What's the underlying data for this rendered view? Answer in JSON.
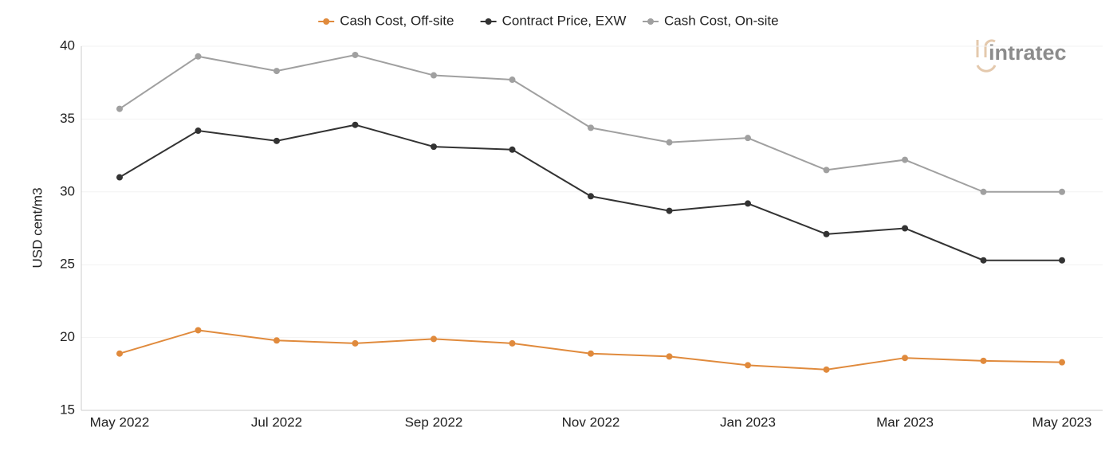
{
  "chart_data": {
    "type": "line",
    "logo": "intratec",
    "y_label": "USD cent/m3",
    "categories": [
      "May 2022",
      null,
      "Jul 2022",
      null,
      "Sep 2022",
      null,
      "Nov 2022",
      null,
      "Jan 2023",
      null,
      "Mar 2023",
      null,
      "May 2023"
    ],
    "series": [
      {
        "name": "Cash Cost, Off-site",
        "color": "#e08a3c",
        "values": [
          18.9,
          20.5,
          19.8,
          19.6,
          19.9,
          19.6,
          18.9,
          18.7,
          18.1,
          17.8,
          18.6,
          18.4,
          18.3
        ]
      },
      {
        "name": "Contract Price, EXW",
        "color": "#333333",
        "values": [
          31.0,
          34.2,
          33.5,
          34.6,
          33.1,
          32.9,
          29.7,
          28.7,
          29.2,
          27.1,
          27.5,
          25.3,
          25.3
        ]
      },
      {
        "name": "Cash Cost, On-site",
        "color": "#a0a0a0",
        "values": [
          35.7,
          39.3,
          38.3,
          39.4,
          38.0,
          37.7,
          34.4,
          33.4,
          33.7,
          31.5,
          32.2,
          30.0,
          30.0
        ]
      }
    ],
    "ylim": [
      15,
      40
    ],
    "yticks": [
      15,
      20,
      25,
      30,
      35,
      40
    ],
    "grid": true,
    "legend": "top"
  }
}
